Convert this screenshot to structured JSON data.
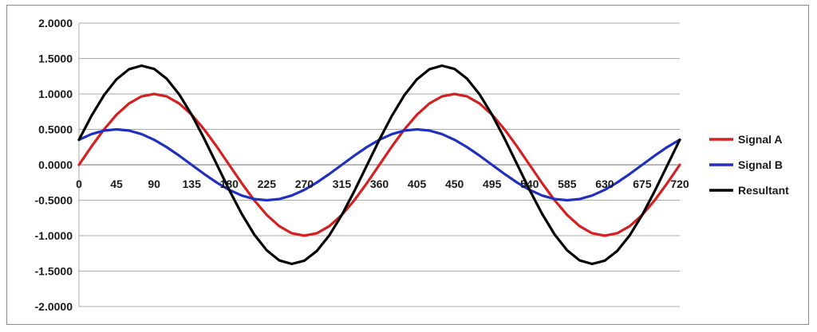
{
  "chart_data": {
    "type": "line",
    "title": "",
    "xlabel": "",
    "ylabel": "",
    "x_ticks": [
      0,
      45,
      90,
      135,
      180,
      225,
      270,
      315,
      360,
      405,
      450,
      495,
      540,
      585,
      630,
      675,
      720
    ],
    "y_ticks": [
      "2.0000",
      "1.5000",
      "1.0000",
      "0.5000",
      "0.0000",
      "-0.5000",
      "-1.0000",
      "-1.5000",
      "-2.0000"
    ],
    "xlim": [
      0,
      720
    ],
    "ylim": [
      -2,
      2
    ],
    "grid": "horizontal",
    "legend_position": "right",
    "x": [
      0,
      15,
      30,
      45,
      60,
      75,
      90,
      105,
      120,
      135,
      150,
      165,
      180,
      195,
      210,
      225,
      240,
      255,
      270,
      285,
      300,
      315,
      330,
      345,
      360,
      375,
      390,
      405,
      420,
      435,
      450,
      465,
      480,
      495,
      510,
      525,
      540,
      555,
      570,
      585,
      600,
      615,
      630,
      645,
      660,
      675,
      690,
      705,
      720
    ],
    "series": [
      {
        "name": "Signal A",
        "color": "#d42020",
        "values": [
          0.0,
          0.2588,
          0.5,
          0.7071,
          0.866,
          0.9659,
          1.0,
          0.9659,
          0.866,
          0.7071,
          0.5,
          0.2588,
          0.0,
          -0.2588,
          -0.5,
          -0.7071,
          -0.866,
          -0.9659,
          -1.0,
          -0.9659,
          -0.866,
          -0.7071,
          -0.5,
          -0.2588,
          0.0,
          0.2588,
          0.5,
          0.7071,
          0.866,
          0.9659,
          1.0,
          0.9659,
          0.866,
          0.7071,
          0.5,
          0.2588,
          0.0,
          -0.2588,
          -0.5,
          -0.7071,
          -0.866,
          -0.9659,
          -1.0,
          -0.9659,
          -0.866,
          -0.7071,
          -0.5,
          -0.2588,
          0.0
        ]
      },
      {
        "name": "Signal B",
        "color": "#1f2fc0",
        "values": [
          0.3536,
          0.433,
          0.483,
          0.5,
          0.483,
          0.433,
          0.3536,
          0.25,
          0.1294,
          0.0,
          -0.1294,
          -0.25,
          -0.3536,
          -0.433,
          -0.483,
          -0.5,
          -0.483,
          -0.433,
          -0.3536,
          -0.25,
          -0.1294,
          0.0,
          0.1294,
          0.25,
          0.3536,
          0.433,
          0.483,
          0.5,
          0.483,
          0.433,
          0.3536,
          0.25,
          0.1294,
          0.0,
          -0.1294,
          -0.25,
          -0.3536,
          -0.433,
          -0.483,
          -0.5,
          -0.483,
          -0.433,
          -0.3536,
          -0.25,
          -0.1294,
          0.0,
          0.1294,
          0.25,
          0.3536
        ]
      },
      {
        "name": "Resultant",
        "color": "#000000",
        "values": [
          0.3536,
          0.6918,
          0.983,
          1.2071,
          1.349,
          1.3989,
          1.3536,
          1.2159,
          0.9954,
          0.7071,
          0.3706,
          0.0088,
          -0.3536,
          -0.6918,
          -0.983,
          -1.2071,
          -1.349,
          -1.3989,
          -1.3536,
          -1.2159,
          -0.9954,
          -0.7071,
          -0.3706,
          -0.0088,
          0.3536,
          0.6918,
          0.983,
          1.2071,
          1.349,
          1.3989,
          1.3536,
          1.2159,
          0.9954,
          0.7071,
          0.3706,
          0.0088,
          -0.3536,
          -0.6918,
          -0.983,
          -1.2071,
          -1.349,
          -1.3989,
          -1.3536,
          -1.2159,
          -0.9954,
          -0.7071,
          -0.3706,
          -0.0088,
          0.3536
        ]
      }
    ]
  }
}
